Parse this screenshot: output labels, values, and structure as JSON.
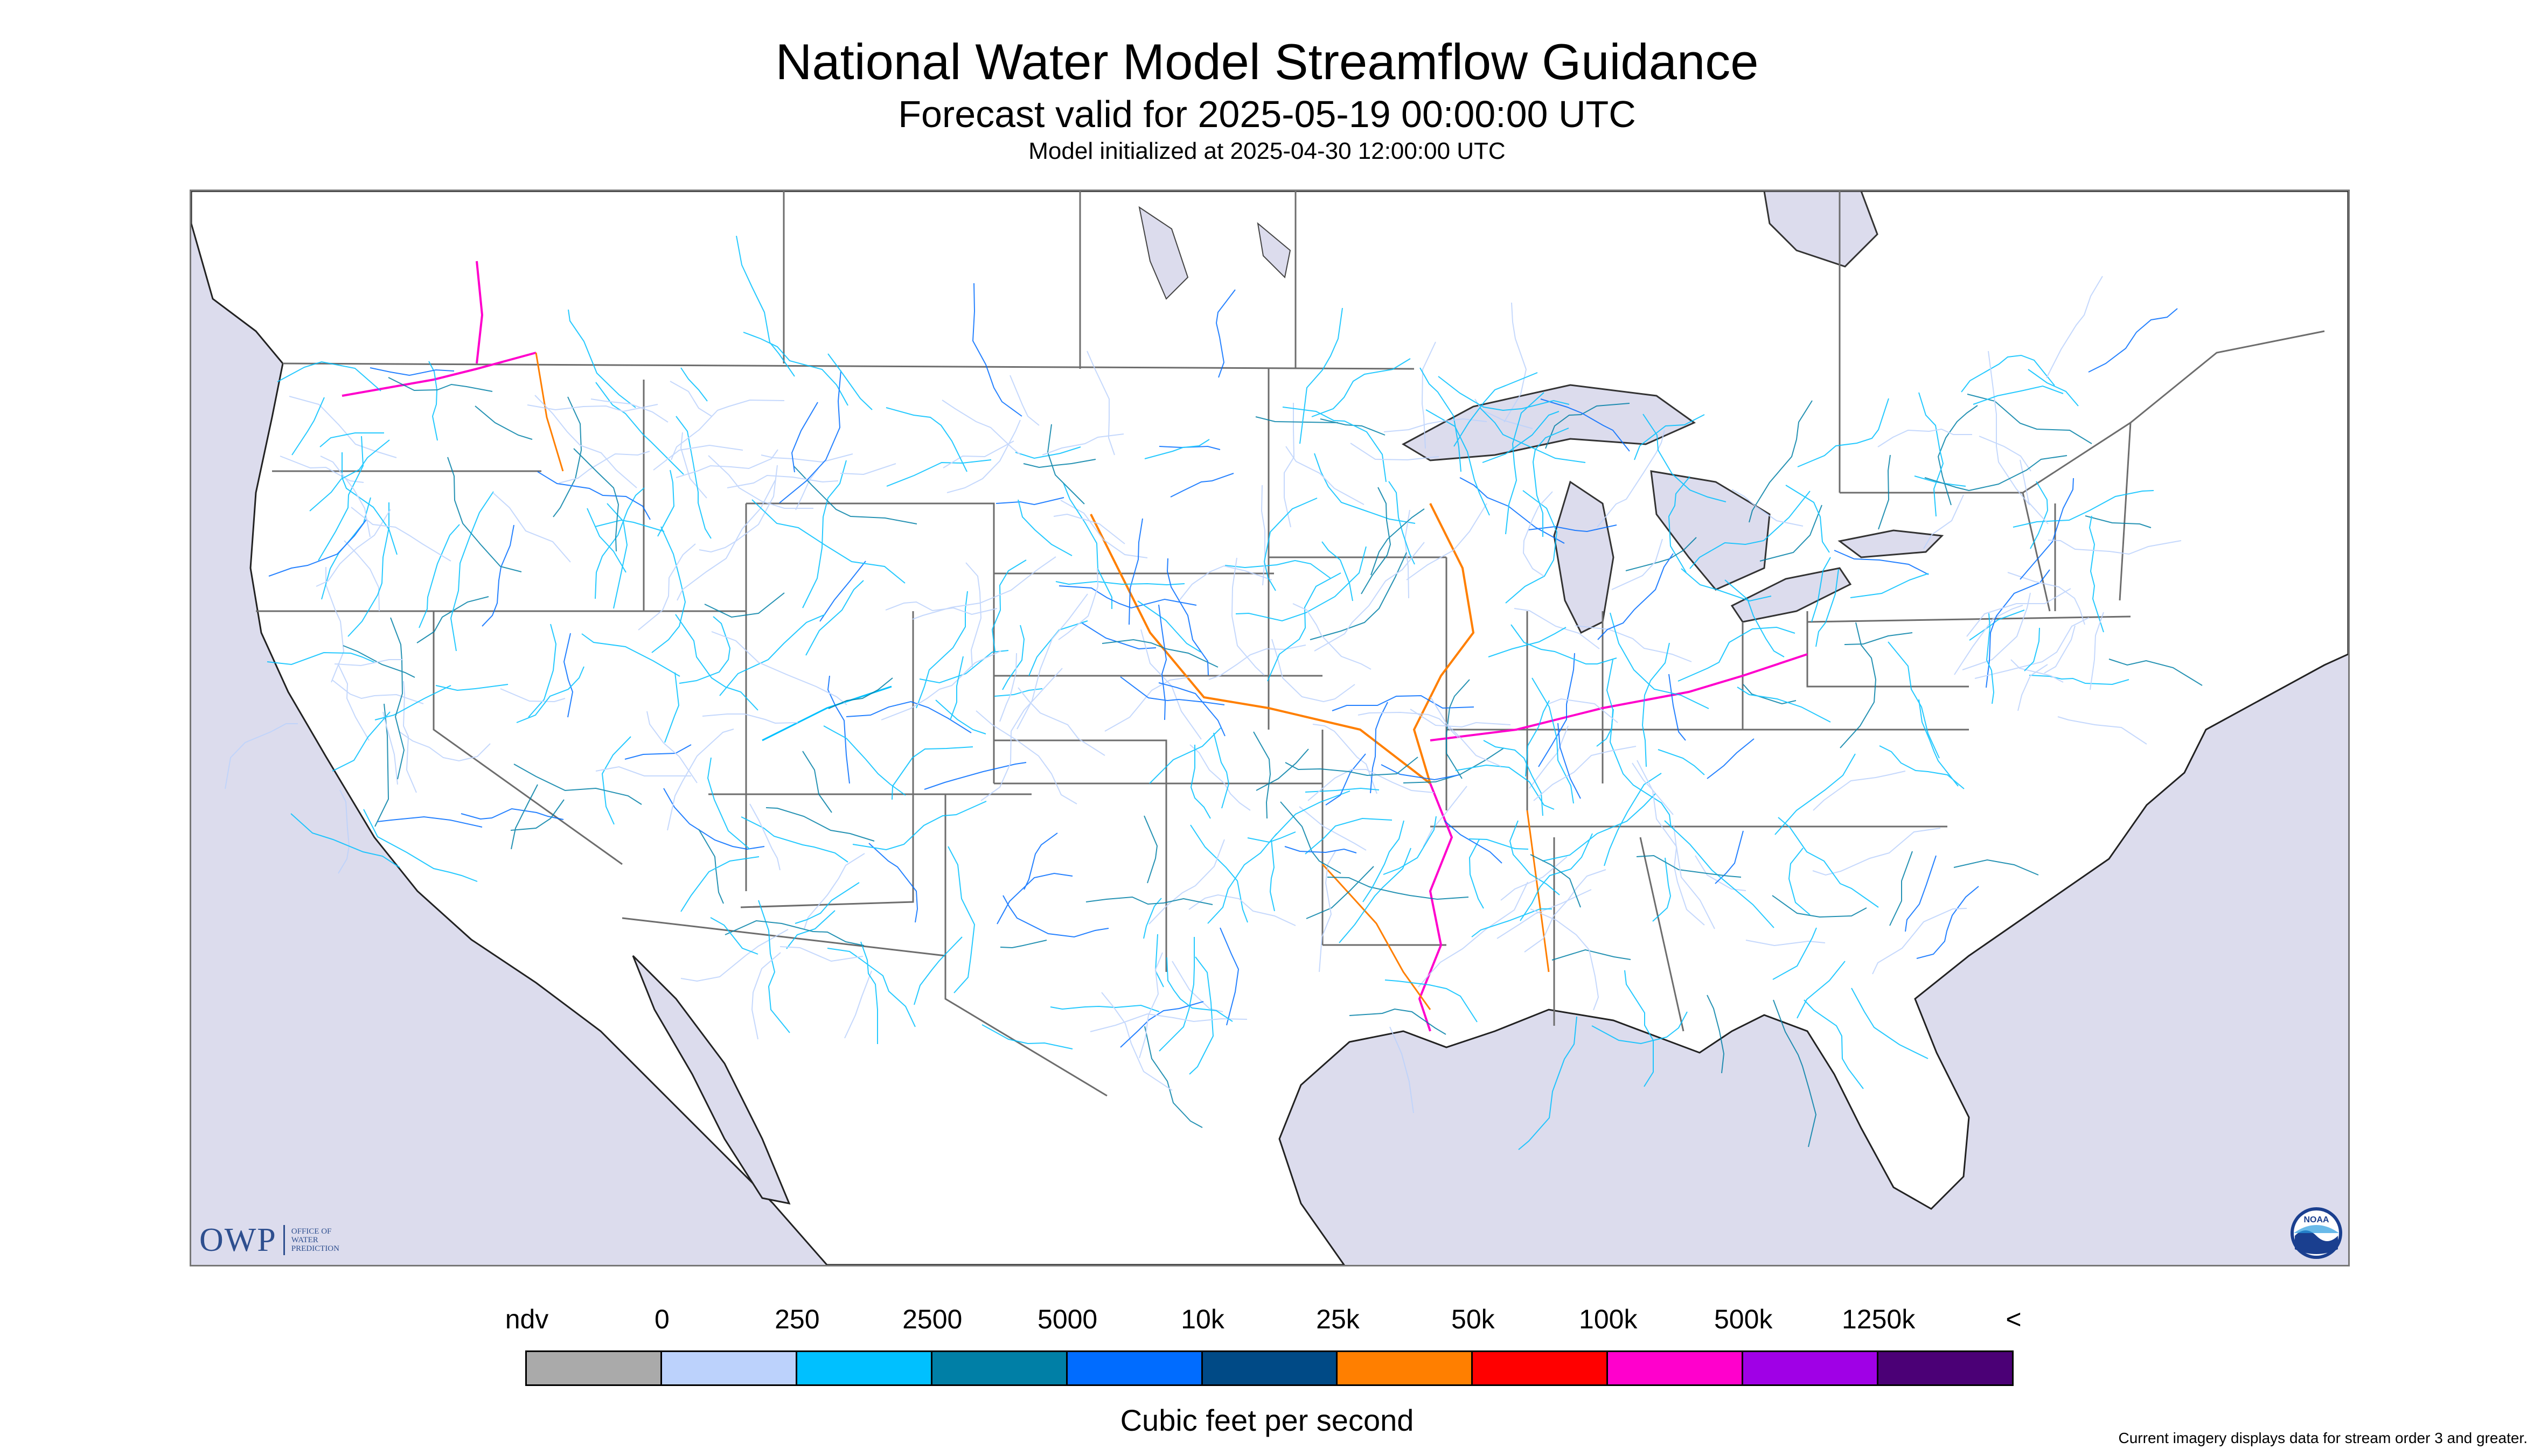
{
  "header": {
    "title": "National Water Model Streamflow Guidance",
    "subtitle": "Forecast valid for 2025-05-19 00:00:00 UTC",
    "init_line": "Model initialized at 2025-04-30 12:00:00 UTC"
  },
  "map": {
    "region": "CONUS",
    "water_color": "#dcdced",
    "land_color": "#ffffff",
    "border_color": "#6d6d6d",
    "logos": {
      "owp": {
        "main": "OWP",
        "sub_lines": [
          "OFFICE OF",
          "WATER",
          "PREDICTION"
        ]
      },
      "noaa": {
        "text": "NOAA",
        "icon": "noaa-seal-icon"
      }
    }
  },
  "legend": {
    "labels": [
      "ndv",
      "0",
      "250",
      "2500",
      "5000",
      "10k",
      "25k",
      "50k",
      "100k",
      "500k",
      "1250k",
      "<"
    ],
    "colors": [
      "#aaaaaa",
      "#bcd2fc",
      "#00c0ff",
      "#007fa6",
      "#006cff",
      "#004a86",
      "#ff7f00",
      "#ff0000",
      "#ff00cc",
      "#a000e6",
      "#4b0076"
    ],
    "caption": "Cubic feet per second"
  },
  "footnote": "Current imagery displays data for stream order 3 and greater."
}
